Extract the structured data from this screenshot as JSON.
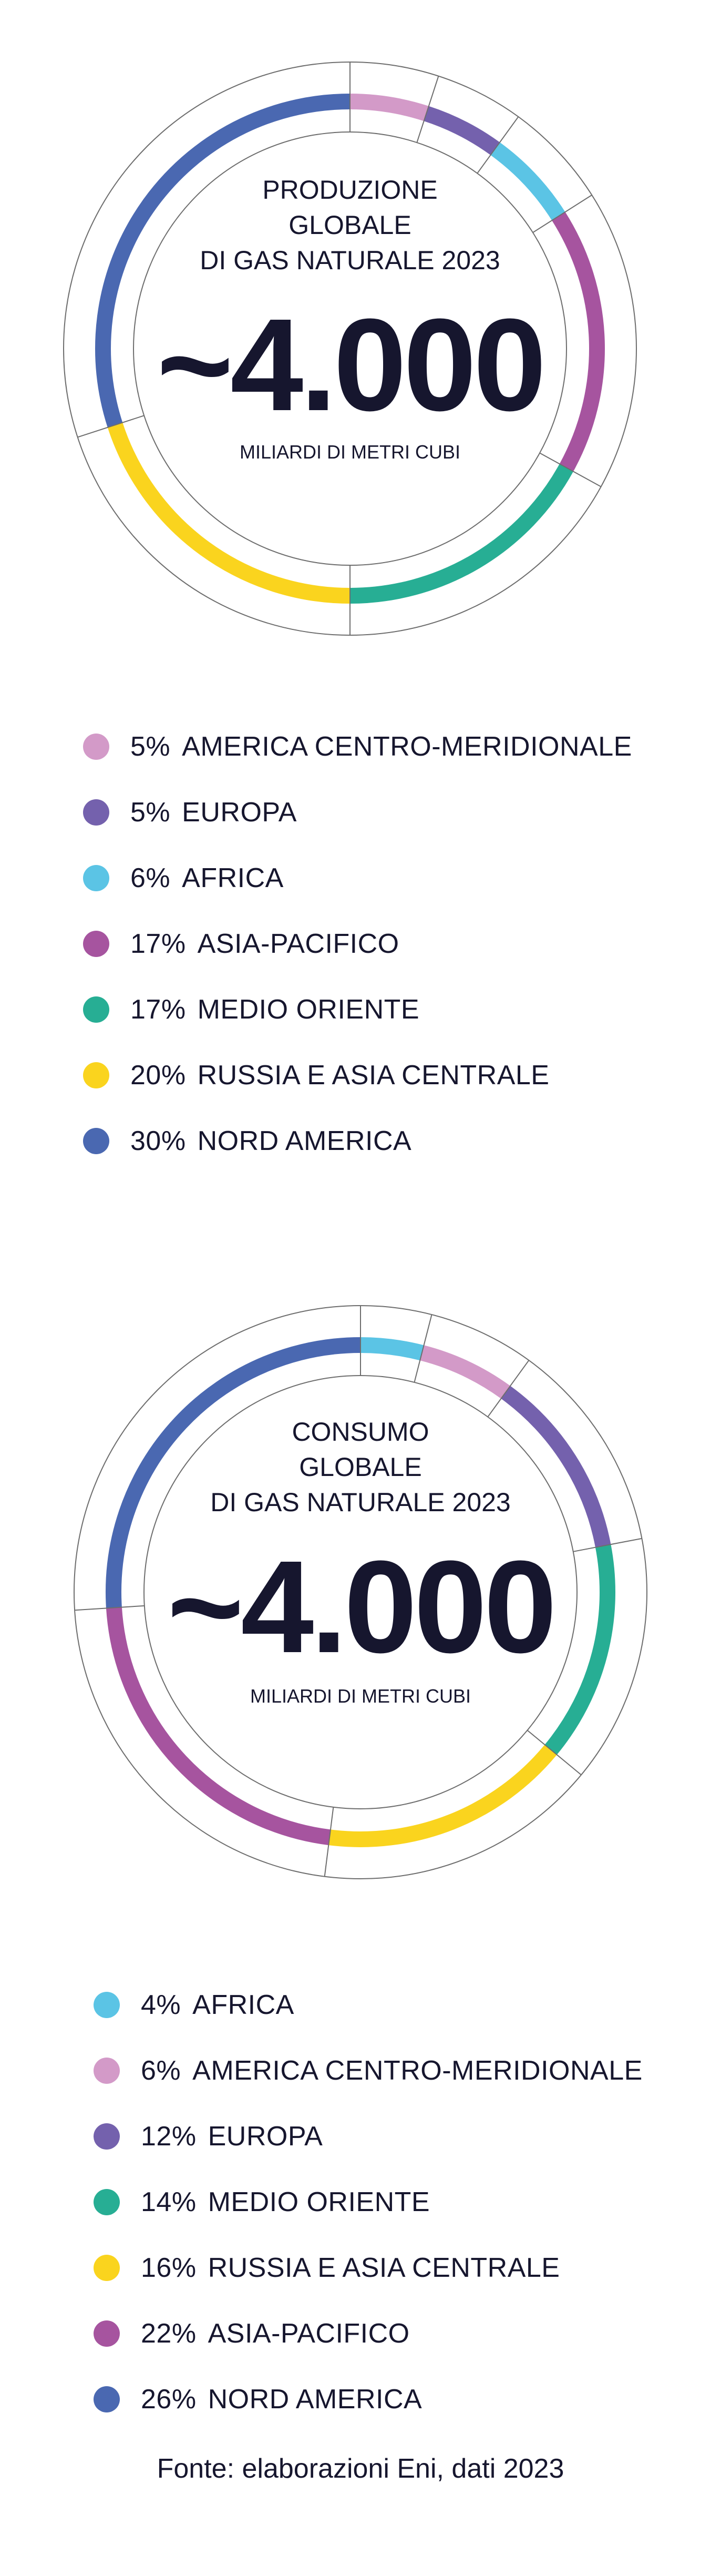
{
  "chart_data": [
    {
      "type": "pie",
      "title_lines": [
        "PRODUZIONE",
        "GLOBALE",
        "DI GAS NATURALE 2023"
      ],
      "center_value": "~4.000",
      "center_unit": "MILIARDI DI METRI CUBI",
      "series": [
        {
          "label": "AMERICA CENTRO-MERIDIONALE",
          "pct_label": "5%",
          "value": 5,
          "color": "#d39ac8"
        },
        {
          "label": "EUROPA",
          "pct_label": "5%",
          "value": 5,
          "color": "#7461ad"
        },
        {
          "label": "AFRICA",
          "pct_label": "6%",
          "value": 6,
          "color": "#5bc4e5"
        },
        {
          "label": "ASIA-PACIFICO",
          "pct_label": "17%",
          "value": 17,
          "color": "#a6549f"
        },
        {
          "label": "MEDIO ORIENTE",
          "pct_label": "17%",
          "value": 17,
          "color": "#27ae94"
        },
        {
          "label": "RUSSIA E ASIA CENTRALE",
          "pct_label": "20%",
          "value": 20,
          "color": "#fad41e"
        },
        {
          "label": "NORD AMERICA",
          "pct_label": "30%",
          "value": 30,
          "color": "#4a68b1"
        }
      ]
    },
    {
      "type": "pie",
      "title_lines": [
        "CONSUMO",
        "GLOBALE",
        "DI GAS NATURALE 2023"
      ],
      "center_value": "~4.000",
      "center_unit": "MILIARDI DI METRI CUBI",
      "series": [
        {
          "label": "AFRICA",
          "pct_label": "4%",
          "value": 4,
          "color": "#5bc4e5"
        },
        {
          "label": "AMERICA CENTRO-MERIDIONALE",
          "pct_label": "6%",
          "value": 6,
          "color": "#d39ac8"
        },
        {
          "label": "EUROPA",
          "pct_label": "12%",
          "value": 12,
          "color": "#7461ad"
        },
        {
          "label": "MEDIO ORIENTE",
          "pct_label": "14%",
          "value": 14,
          "color": "#27ae94"
        },
        {
          "label": "RUSSIA E ASIA CENTRALE",
          "pct_label": "16%",
          "value": 16,
          "color": "#fad41e"
        },
        {
          "label": "ASIA-PACIFICO",
          "pct_label": "22%",
          "value": 22,
          "color": "#a6549f"
        },
        {
          "label": "NORD AMERICA",
          "pct_label": "26%",
          "value": 26,
          "color": "#4a68b1"
        }
      ]
    }
  ],
  "source": "Fonte: elaborazioni Eni, dati 2023"
}
